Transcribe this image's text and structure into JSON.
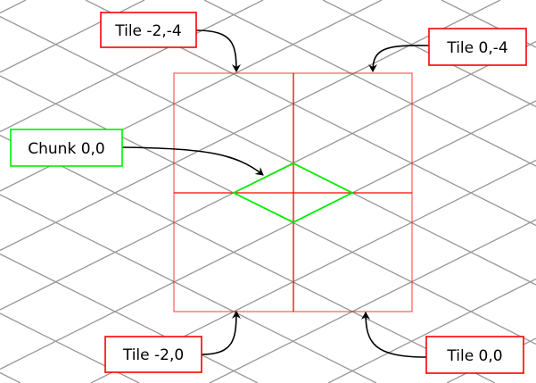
{
  "colors": {
    "grid": "#999999",
    "tile": "#ff0000",
    "chunk": "#00ee00",
    "arrow": "#000000"
  },
  "labels": {
    "tile_m2_m4": "Tile -2,-4",
    "tile_0_m4": "Tile 0,-4",
    "chunk_0_0": "Chunk 0,0",
    "tile_m2_0": "Tile -2,0",
    "tile_0_0": "Tile 0,0"
  }
}
